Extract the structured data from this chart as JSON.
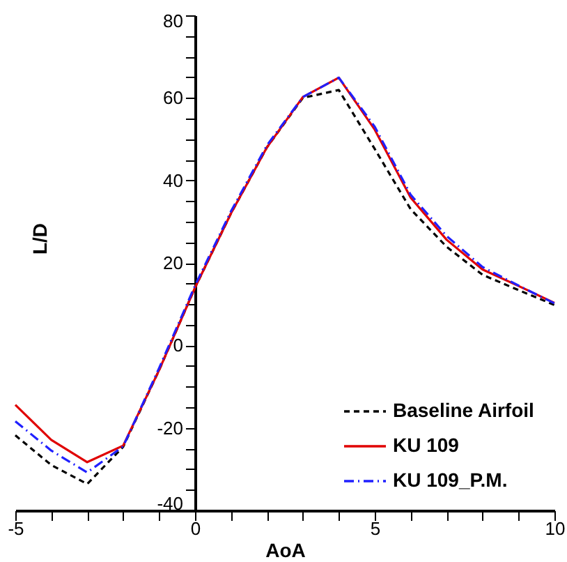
{
  "chart_data": {
    "type": "line",
    "xlabel": "AoA",
    "ylabel": "L/D",
    "x": [
      -5,
      -4,
      -3,
      -2,
      -1,
      0,
      1,
      2,
      3,
      4,
      5,
      6,
      7,
      8,
      9,
      10
    ],
    "series": [
      {
        "name": "Baseline Airfoil",
        "color": "#000000",
        "line_style": "dashed",
        "values": [
          -21.8,
          -29,
          -33.6,
          -24.6,
          -6,
          14,
          32,
          48,
          60,
          61.9,
          47.6,
          33,
          23.9,
          17.1,
          13.4,
          9.8
        ]
      },
      {
        "name": "KU 109",
        "color": "#e00000",
        "line_style": "solid",
        "values": [
          -14.4,
          -22.9,
          -28.3,
          -24.3,
          -6,
          14,
          32,
          48,
          60.2,
          64.9,
          52.3,
          35.8,
          25.6,
          18.4,
          14.4,
          10.3
        ]
      },
      {
        "name": "KU 109_P.M.",
        "color": "#2020ff",
        "line_style": "dashdot",
        "values": [
          -18.4,
          -25.5,
          -30.8,
          -24.5,
          -5.5,
          14.5,
          32.5,
          48.5,
          60.2,
          64.9,
          53,
          36.5,
          26.5,
          19,
          14.5,
          10.2
        ]
      }
    ],
    "xlim": [
      -5,
      10
    ],
    "ylim": [
      -40,
      80
    ],
    "xticks": [
      -5,
      {
        "value": -4,
        "label": null
      },
      {
        "value": -3,
        "label": null
      },
      {
        "value": -2,
        "label": null
      },
      {
        "value": -1,
        "label": null
      },
      0,
      {
        "value": 1,
        "label": null
      },
      {
        "value": 2,
        "label": null
      },
      {
        "value": 3,
        "label": null
      },
      {
        "value": 4,
        "label": null
      },
      5,
      {
        "value": 6,
        "label": null
      },
      {
        "value": 7,
        "label": null
      },
      {
        "value": 8,
        "label": null
      },
      {
        "value": 9,
        "label": null
      },
      10
    ],
    "yticks": [
      -40,
      {
        "value": -35,
        "label": null
      },
      {
        "value": -30,
        "label": null
      },
      {
        "value": -25,
        "label": null
      },
      -20,
      {
        "value": -15,
        "label": null
      },
      {
        "value": -10,
        "label": null
      },
      {
        "value": -5,
        "label": null
      },
      0,
      {
        "value": 5,
        "label": null
      },
      {
        "value": 10,
        "label": null
      },
      {
        "value": 15,
        "label": null
      },
      20,
      {
        "value": 25,
        "label": null
      },
      {
        "value": 30,
        "label": null
      },
      {
        "value": 35,
        "label": null
      },
      40,
      {
        "value": 45,
        "label": null
      },
      {
        "value": 50,
        "label": null
      },
      {
        "value": 55,
        "label": null
      },
      60,
      {
        "value": 65,
        "label": null
      },
      {
        "value": 70,
        "label": null
      },
      {
        "value": 75,
        "label": null
      },
      80
    ],
    "grid": false,
    "legend": "bottom right",
    "marker": "none"
  }
}
